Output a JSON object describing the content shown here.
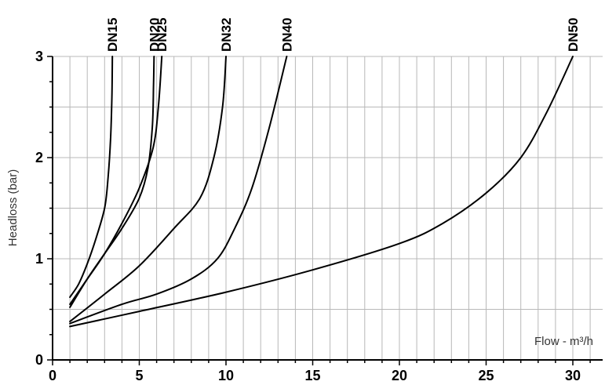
{
  "chart_data": {
    "type": "line",
    "xlabel": "Flow - m³/h",
    "ylabel": "Headloss (bar)",
    "xlim": [
      0,
      31.5
    ],
    "ylim": [
      0,
      3
    ],
    "x_ticks": [
      "0",
      "5",
      "10",
      "15",
      "20",
      "25",
      "30"
    ],
    "y_ticks": [
      "0",
      "1",
      "2",
      "3"
    ],
    "grid": true,
    "series": [
      {
        "name": "DN15",
        "points": [
          [
            1,
            0.62
          ],
          [
            1.5,
            0.75
          ],
          [
            2,
            0.95
          ],
          [
            2.5,
            1.2
          ],
          [
            3,
            1.5
          ],
          [
            3.2,
            1.8
          ],
          [
            3.35,
            2.2
          ],
          [
            3.42,
            2.6
          ],
          [
            3.45,
            3.0
          ]
        ]
      },
      {
        "name": "DN20",
        "points": [
          [
            1,
            0.52
          ],
          [
            2,
            0.8
          ],
          [
            3,
            1.05
          ],
          [
            4,
            1.3
          ],
          [
            5,
            1.6
          ],
          [
            5.5,
            1.9
          ],
          [
            5.75,
            2.3
          ],
          [
            5.82,
            2.7
          ],
          [
            5.85,
            3.0
          ]
        ]
      },
      {
        "name": "DN25",
        "points": [
          [
            1,
            0.55
          ],
          [
            2,
            0.8
          ],
          [
            3,
            1.05
          ],
          [
            4,
            1.35
          ],
          [
            5,
            1.7
          ],
          [
            5.8,
            2.1
          ],
          [
            6.1,
            2.5
          ],
          [
            6.3,
            3.0
          ]
        ]
      },
      {
        "name": "DN32",
        "points": [
          [
            1,
            0.38
          ],
          [
            3,
            0.65
          ],
          [
            5,
            0.93
          ],
          [
            7,
            1.3
          ],
          [
            8.5,
            1.6
          ],
          [
            9.3,
            2.0
          ],
          [
            9.8,
            2.5
          ],
          [
            10,
            3.0
          ]
        ]
      },
      {
        "name": "DN40",
        "points": [
          [
            1,
            0.36
          ],
          [
            4,
            0.55
          ],
          [
            6,
            0.65
          ],
          [
            8,
            0.8
          ],
          [
            9.5,
            1.0
          ],
          [
            10.5,
            1.3
          ],
          [
            11.5,
            1.7
          ],
          [
            12.5,
            2.3
          ],
          [
            13.5,
            3.0
          ]
        ]
      },
      {
        "name": "DN50",
        "points": [
          [
            1,
            0.33
          ],
          [
            5,
            0.48
          ],
          [
            10,
            0.67
          ],
          [
            15,
            0.89
          ],
          [
            20,
            1.15
          ],
          [
            22.5,
            1.35
          ],
          [
            25,
            1.65
          ],
          [
            27,
            2.0
          ],
          [
            28.5,
            2.45
          ],
          [
            30,
            3.0
          ]
        ]
      }
    ]
  }
}
